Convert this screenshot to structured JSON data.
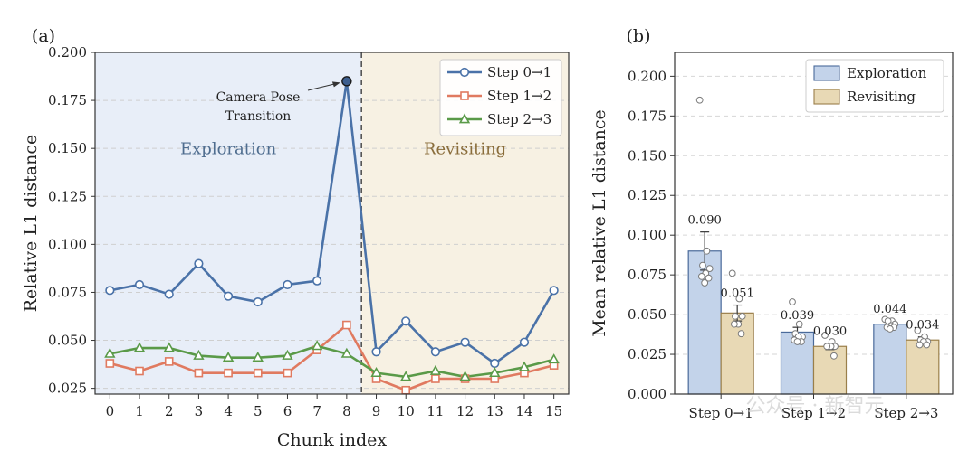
{
  "chart_data": [
    {
      "type": "line",
      "panel_label": "(a)",
      "xlabel": "Chunk index",
      "ylabel": "Relative L1 distance",
      "ylim": [
        0.022,
        0.2
      ],
      "xlim": [
        -0.5,
        15.5
      ],
      "yticks": [
        "0.025",
        "0.050",
        "0.075",
        "0.100",
        "0.125",
        "0.150",
        "0.175",
        "0.200"
      ],
      "x": [
        0,
        1,
        2,
        3,
        4,
        5,
        6,
        7,
        8,
        9,
        10,
        11,
        12,
        13,
        14,
        15
      ],
      "grid": "horizontal dashed",
      "legend_position": "top-right",
      "split_at": 8.5,
      "regions": [
        {
          "label": "Exploration",
          "color": "#e8eef8"
        },
        {
          "label": "Revisiting",
          "color": "#f7f1e3"
        }
      ],
      "series": [
        {
          "name": "Step 0→1",
          "color": "#4a72a8",
          "marker": "circle",
          "values": [
            0.076,
            0.079,
            0.074,
            0.09,
            0.073,
            0.07,
            0.079,
            0.081,
            0.185,
            0.044,
            0.06,
            0.044,
            0.049,
            0.038,
            0.049,
            0.076
          ]
        },
        {
          "name": "Step 1→2",
          "color": "#e07a60",
          "marker": "square",
          "values": [
            0.038,
            0.034,
            0.039,
            0.033,
            0.033,
            0.033,
            0.033,
            0.045,
            0.058,
            0.03,
            0.024,
            0.03,
            0.03,
            0.03,
            0.033,
            0.037
          ]
        },
        {
          "name": "Step 2→3",
          "color": "#5a9a48",
          "marker": "triangle",
          "values": [
            0.043,
            0.046,
            0.046,
            0.042,
            0.041,
            0.041,
            0.042,
            0.047,
            0.043,
            0.033,
            0.031,
            0.034,
            0.031,
            0.033,
            0.036,
            0.04
          ]
        }
      ],
      "annotation": {
        "text": [
          "Camera Pose",
          "Transition"
        ],
        "x": 8,
        "y": 0.185
      }
    },
    {
      "type": "bar",
      "panel_label": "(b)",
      "ylabel": "Mean relative L1 distance",
      "ylim": [
        0,
        0.215
      ],
      "yticks": [
        "0.000",
        "0.025",
        "0.050",
        "0.075",
        "0.100",
        "0.125",
        "0.150",
        "0.175",
        "0.200"
      ],
      "categories": [
        "Step 0→1",
        "Step 1→2",
        "Step 2→3"
      ],
      "grid": "horizontal dashed",
      "legend_position": "top-right",
      "series": [
        {
          "name": "Exploration",
          "color": "#c3d3ea",
          "edge": "#4a6a9a",
          "values": [
            0.09,
            0.039,
            0.044
          ],
          "labels": [
            "0.090",
            "0.039",
            "0.044"
          ],
          "errors": [
            0.012,
            0.003,
            0.002
          ],
          "points": [
            [
              0.185,
              0.09,
              0.081,
              0.079,
              0.076,
              0.074,
              0.073,
              0.07
            ],
            [
              0.058,
              0.044,
              0.038,
              0.036,
              0.036,
              0.034,
              0.033,
              0.033
            ],
            [
              0.047,
              0.046,
              0.046,
              0.044,
              0.043,
              0.042,
              0.042,
              0.041
            ]
          ]
        },
        {
          "name": "Revisiting",
          "color": "#e8d9b5",
          "edge": "#9a7f4a",
          "values": [
            0.051,
            0.03,
            0.034
          ],
          "labels": [
            "0.051",
            "0.030",
            "0.034"
          ],
          "errors": [
            0.005,
            0.002,
            0.002
          ],
          "points": [
            [
              0.076,
              0.06,
              0.049,
              0.049,
              0.044,
              0.044,
              0.038
            ],
            [
              0.037,
              0.033,
              0.03,
              0.03,
              0.03,
              0.03,
              0.024
            ],
            [
              0.04,
              0.036,
              0.034,
              0.033,
              0.033,
              0.031,
              0.031
            ]
          ]
        }
      ]
    }
  ],
  "watermark": "公众号 · 新智元"
}
